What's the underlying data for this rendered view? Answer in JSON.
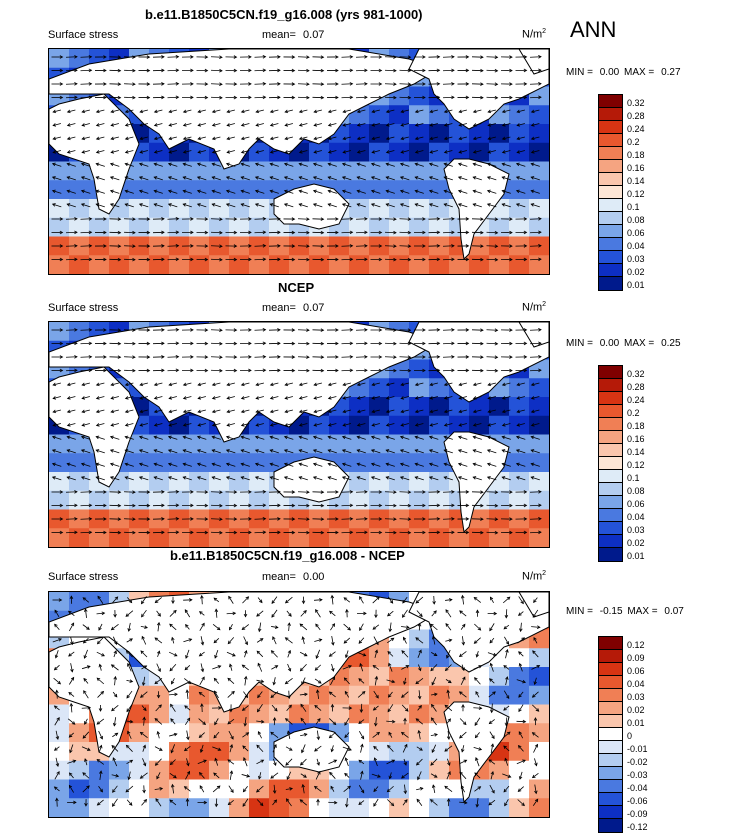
{
  "season": "ANN",
  "panels": [
    {
      "title": "b.e11.B1850C5CN.f19_g16.008 (yrs 981-1000)",
      "variable": "Surface stress",
      "mean_label": "mean=",
      "mean_value": "0.07",
      "units": "N/m",
      "units_sup": "2",
      "min_label": "MIN =",
      "min_value": "0.00",
      "max_label": "MAX =",
      "max_value": "0.27",
      "colorbar": [
        "0.32",
        "0.28",
        "0.24",
        "0.2",
        "0.18",
        "0.16",
        "0.14",
        "0.12",
        "0.1",
        "0.08",
        "0.06",
        "0.04",
        "0.03",
        "0.02",
        "0.01"
      ]
    },
    {
      "title": "NCEP",
      "variable": "Surface stress",
      "mean_label": "mean=",
      "mean_value": "0.07",
      "units": "N/m",
      "units_sup": "2",
      "min_label": "MIN =",
      "min_value": "0.00",
      "max_label": "MAX =",
      "max_value": "0.25",
      "colorbar": [
        "0.32",
        "0.28",
        "0.24",
        "0.2",
        "0.18",
        "0.16",
        "0.14",
        "0.12",
        "0.1",
        "0.08",
        "0.06",
        "0.04",
        "0.03",
        "0.02",
        "0.01"
      ]
    },
    {
      "title": "b.e11.B1850C5CN.f19_g16.008 - NCEP",
      "variable": "Surface stress",
      "mean_label": "mean=",
      "mean_value": "0.00",
      "units": "N/m",
      "units_sup": "2",
      "min_label": "MIN =",
      "min_value": "-0.15",
      "max_label": "MAX =",
      "max_value": "0.07",
      "colorbar": [
        "0.12",
        "0.09",
        "0.06",
        "0.04",
        "0.03",
        "0.02",
        "0.01",
        "0",
        "-0.01",
        "-0.02",
        "-0.03",
        "-0.04",
        "-0.06",
        "-0.09",
        "-0.12"
      ]
    }
  ],
  "colors": {
    "stress_scale": [
      "#7f0000",
      "#b51a08",
      "#d73413",
      "#e8582e",
      "#f07f55",
      "#f5a481",
      "#fac6ad",
      "#fde6d6",
      "#deebf7",
      "#b3cdf0",
      "#7aa5e8",
      "#4a79e0",
      "#2453d8",
      "#0d2fc4",
      "#001a8c"
    ],
    "diff_scale": [
      "#7f0000",
      "#b51a08",
      "#d73413",
      "#e8582e",
      "#f07f55",
      "#f5a481",
      "#fac6ad",
      "#ffffff",
      "#dbe6f7",
      "#b3cdf0",
      "#7aa5e8",
      "#4a79e0",
      "#2453d8",
      "#0d2fc4",
      "#001a8c"
    ],
    "land": "#ffffff",
    "coast": "#000000"
  }
}
